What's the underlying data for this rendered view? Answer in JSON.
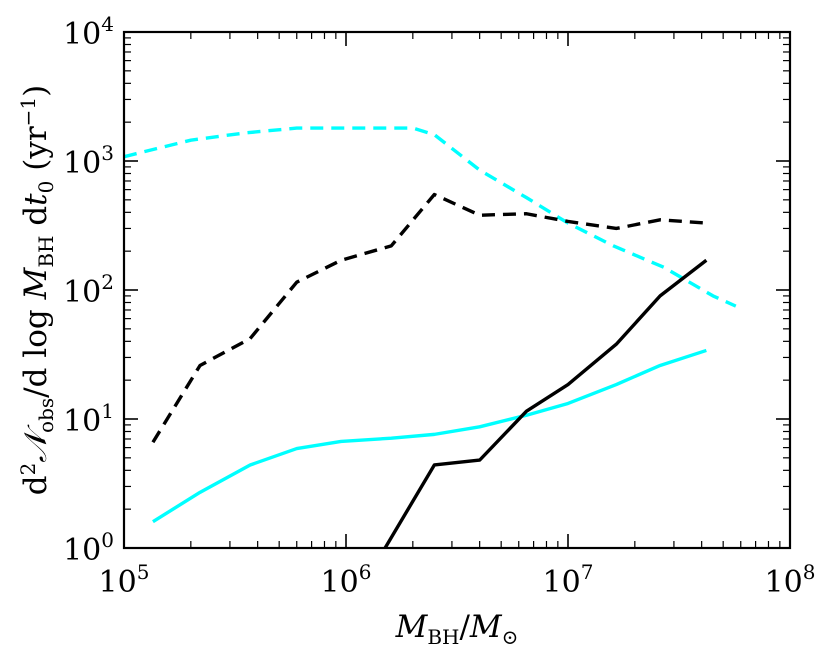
{
  "chart_data": {
    "type": "line",
    "title": "",
    "xlabel": {
      "main": "M",
      "sub": "BH",
      "den": "M",
      "den_sub": "⊙"
    },
    "ylabel": {
      "p1": "d",
      "p1_sup": "2",
      "p2": "𝒩",
      "p2_sub": "obs",
      "p3": "/d log ",
      "p4": "M",
      "p4_sub": "BH",
      "p5": " d",
      "p6": "t",
      "p6_sub": "0",
      "p7": " (yr",
      "p7_sup": "−1",
      "p8": ")"
    },
    "xscale": "log",
    "yscale": "log",
    "xlim": [
      100000,
      100000000
    ],
    "ylim": [
      1,
      10000
    ],
    "xticks": [
      {
        "value": 100000,
        "base": "10",
        "exp": "5"
      },
      {
        "value": 1000000,
        "base": "10",
        "exp": "6"
      },
      {
        "value": 10000000,
        "base": "10",
        "exp": "7"
      },
      {
        "value": 100000000,
        "base": "10",
        "exp": "8"
      }
    ],
    "yticks": [
      {
        "value": 1,
        "base": "10",
        "exp": "0"
      },
      {
        "value": 10,
        "base": "10",
        "exp": "1"
      },
      {
        "value": 100,
        "base": "10",
        "exp": "2"
      },
      {
        "value": 1000,
        "base": "10",
        "exp": "3"
      },
      {
        "value": 10000,
        "base": "10",
        "exp": "4"
      }
    ],
    "series": [
      {
        "name": "cyan-dashed",
        "color": "#00ffff",
        "style": "dashed",
        "x": [
          100000,
          200000,
          350000,
          600000,
          1000000,
          1500000,
          2000000,
          2500000,
          4000000,
          6500000,
          10000000,
          16000000,
          27000000,
          45000000,
          57000000
        ],
        "y": [
          1080,
          1450,
          1650,
          1800,
          1800,
          1800,
          1800,
          1600,
          850,
          520,
          330,
          220,
          150,
          90,
          75
        ]
      },
      {
        "name": "black-dashed",
        "color": "#000000",
        "style": "dashed",
        "x": [
          135000,
          220000,
          370000,
          600000,
          950000,
          1600000,
          2500000,
          4000000,
          6500000,
          10000000,
          16500000,
          26000000,
          42000000
        ],
        "y": [
          6.6,
          26,
          42,
          115,
          170,
          220,
          550,
          380,
          390,
          340,
          300,
          350,
          330
        ]
      },
      {
        "name": "cyan-solid",
        "color": "#00ffff",
        "style": "solid",
        "x": [
          135000,
          220000,
          370000,
          600000,
          950000,
          1600000,
          2500000,
          4000000,
          6500000,
          10000000,
          16500000,
          26000000,
          42000000
        ],
        "y": [
          1.6,
          2.7,
          4.4,
          5.9,
          6.7,
          7.1,
          7.6,
          8.7,
          10.7,
          13.2,
          18.5,
          26,
          34
        ]
      },
      {
        "name": "black-solid",
        "color": "#000000",
        "style": "solid",
        "x": [
          1500000,
          2500000,
          4000000,
          6500000,
          10000000,
          16500000,
          26000000,
          42000000
        ],
        "y": [
          1.0,
          4.4,
          4.8,
          11.5,
          18.5,
          38,
          90,
          170
        ]
      }
    ]
  }
}
